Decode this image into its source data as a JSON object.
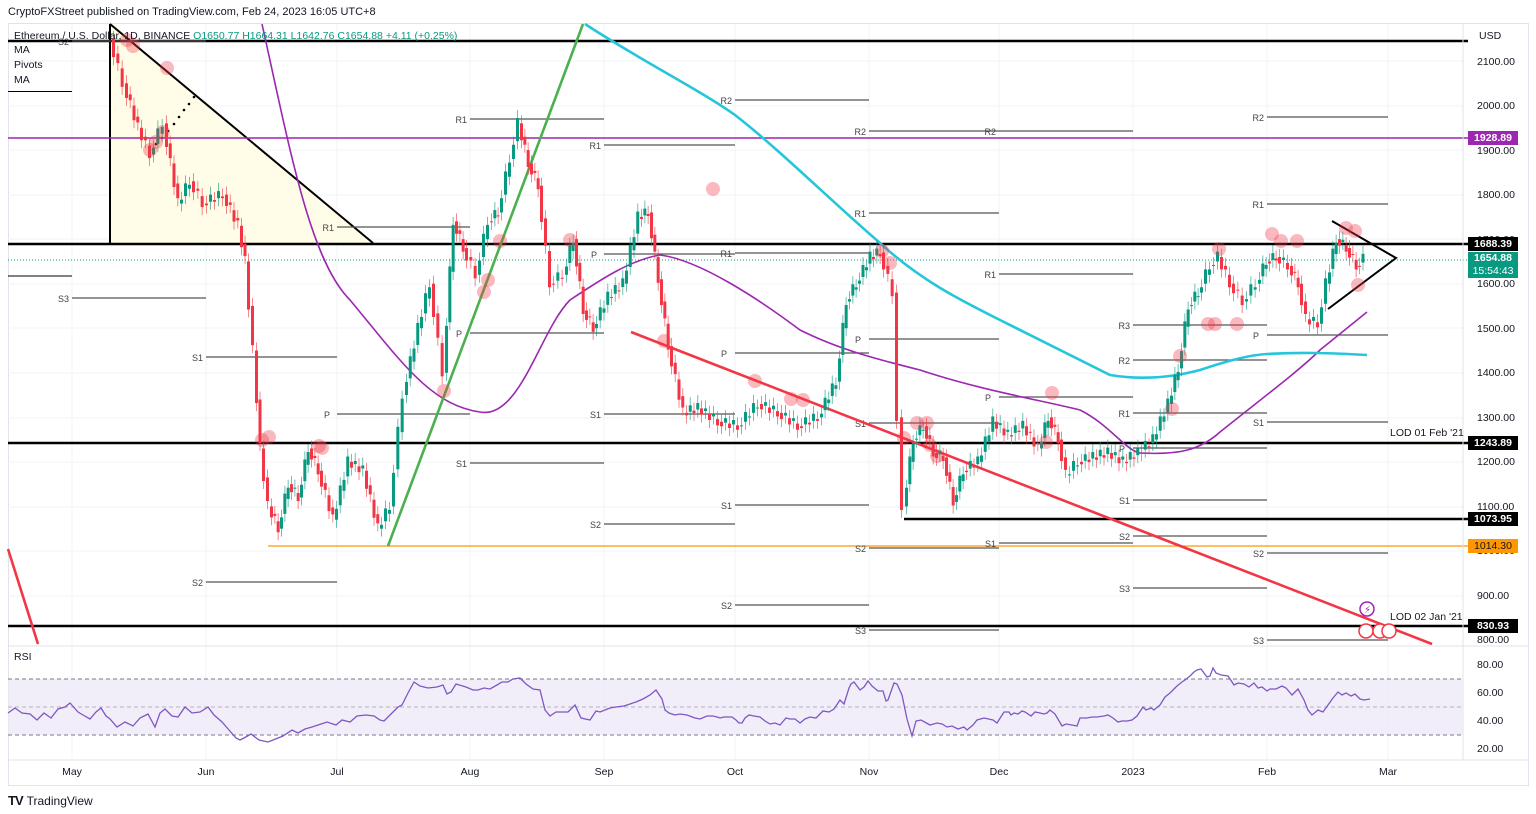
{
  "header": {
    "publisher": "CryptoFXStreet published on TradingView.com, Feb 24, 2023 16:05 UTC+8"
  },
  "legend": {
    "symbol": "Ethereum / U.S. Dollar, 1D, BINANCE",
    "ohlc": "O1650.77  H1664.31  L1642.76  C1654.88  +4.11 (+0.25%)",
    "indicators": [
      "MA",
      "Pivots",
      "MA"
    ]
  },
  "price_axis": {
    "currency": "USD",
    "ticks": [
      "2100.00",
      "2000.00",
      "1900.00",
      "1800.00",
      "1700.00",
      "1600.00",
      "1500.00",
      "1400.00",
      "1300.00",
      "1200.00",
      "1100.00",
      "1000.00",
      "900.00",
      "800.00"
    ]
  },
  "price_tags": {
    "purple_level": "1928.89",
    "resistance": "1688.39",
    "last_price": "1654.88",
    "countdown": "15:54:43",
    "lod_feb21": "1243.89",
    "low_level": "1073.95",
    "orange_level": "1014.30",
    "lod_jan21": "830.93"
  },
  "annotations": {
    "lod_feb21": "LOD 01 Feb '21",
    "lod_jan21": "LOD 02 Jan '21"
  },
  "rsi": {
    "title": "RSI",
    "ticks": [
      "80.00",
      "60.00",
      "40.00",
      "20.00"
    ]
  },
  "time_axis": {
    "months": [
      "May",
      "Jun",
      "Jul",
      "Aug",
      "Sep",
      "Oct",
      "Nov",
      "Dec",
      "2023",
      "Feb",
      "Mar"
    ]
  },
  "footer": {
    "brand": "TradingView"
  },
  "colors": {
    "up": "#089981",
    "down": "#f23645",
    "ma_fast": "#9c27b0",
    "ma_slow": "#26c6da",
    "uptrend": "#4caf50",
    "downtrend": "#f23645",
    "support_orange": "#ff9800",
    "purple_line": "#9c27b0",
    "rsi_line": "#7e57c2",
    "rsi_band": "#ede7f6"
  },
  "chart_data": {
    "type": "candlestick",
    "title": "Ethereum / U.S. Dollar, 1D, BINANCE",
    "xlabel": "",
    "ylabel": "USD",
    "ylim": [
      780,
      2150
    ],
    "x_ticks": [
      "May",
      "Jun",
      "Jul",
      "Aug",
      "Sep",
      "Oct",
      "Nov",
      "Dec",
      "2023",
      "Feb",
      "Mar"
    ],
    "last_ohlc": {
      "open": 1650.77,
      "high": 1664.31,
      "low": 1642.76,
      "close": 1654.88,
      "change": 4.11,
      "change_pct": 0.25
    },
    "horizontal_levels": [
      {
        "price": 2150,
        "color": "black",
        "label": ""
      },
      {
        "price": 1928.89,
        "color": "purple",
        "label": "1928.89"
      },
      {
        "price": 1688.39,
        "color": "black",
        "label": "1688.39"
      },
      {
        "price": 1243.89,
        "color": "black",
        "label": "LOD 01 Feb '21"
      },
      {
        "price": 1073.95,
        "color": "black",
        "label": "1073.95"
      },
      {
        "price": 1014.3,
        "color": "orange",
        "label": "1014.30"
      },
      {
        "price": 830.93,
        "color": "black",
        "label": "LOD 02 Jan '21"
      }
    ],
    "monthly_pivots": [
      {
        "month": "May",
        "S3": 1570,
        "S2": 2150
      },
      {
        "month": "Jun",
        "R1": 1730,
        "S1": 1440,
        "S2": 930
      },
      {
        "month": "Jul",
        "P": 1310
      },
      {
        "month": "Aug",
        "R1": 1970,
        "P": 1490,
        "S1": 1200
      },
      {
        "month": "Sep",
        "R1": 1915,
        "P": 1660,
        "S1": 1310,
        "S2": 1050
      },
      {
        "month": "Oct",
        "R2": 2015,
        "R1": 1665,
        "P": 1445,
        "S1": 1100,
        "S2": 870
      },
      {
        "month": "Nov",
        "R2": 1940,
        "R1": 1775,
        "P": 1475,
        "S1": 1290,
        "S2": 1010,
        "S3": 835
      },
      {
        "month": "Dec",
        "R2": 1940,
        "R1": 1625,
        "P": 1345,
        "S1": 1020
      },
      {
        "month": "Jan",
        "R3": 1510,
        "R2": 1430,
        "R1": 1310,
        "P": 1230,
        "S1": 1115,
        "S2": 1040,
        "S3": 915
      },
      {
        "month": "Feb",
        "R2": 1975,
        "R1": 1780,
        "P": 1485,
        "S1": 1285,
        "S2": 1000,
        "S3": 800
      }
    ],
    "moving_averages": [
      {
        "name": "MA fast (purple)",
        "points": [
          [
            "2022-05-15",
            2300
          ],
          [
            "2022-06-15",
            1600
          ],
          [
            "2022-07-20",
            1350
          ],
          [
            "2022-08-25",
            1560
          ],
          [
            "2022-09-10",
            1660
          ],
          [
            "2022-10-20",
            1470
          ],
          [
            "2022-12-10",
            1340
          ],
          [
            "2022-12-31",
            1235
          ],
          [
            "2023-01-20",
            1290
          ],
          [
            "2023-02-23",
            1535
          ]
        ]
      },
      {
        "name": "MA slow (cyan)",
        "points": [
          [
            "2022-08-25",
            2100
          ],
          [
            "2022-10-01",
            1900
          ],
          [
            "2022-11-01",
            1690
          ],
          [
            "2022-12-01",
            1500
          ],
          [
            "2022-12-31",
            1390
          ],
          [
            "2023-01-31",
            1440
          ],
          [
            "2023-02-23",
            1440
          ]
        ]
      }
    ],
    "rsi": {
      "ylim": [
        15,
        90
      ],
      "overbought": 70,
      "oversold": 30,
      "mid": 50,
      "last": 56
    },
    "patterns": [
      "descending triangle May-Jun 2022",
      "ascending trendline Jul-Aug 2022",
      "descending trendline Sep 2022-Mar 2023",
      "symmetrical triangle Feb 2023"
    ]
  }
}
